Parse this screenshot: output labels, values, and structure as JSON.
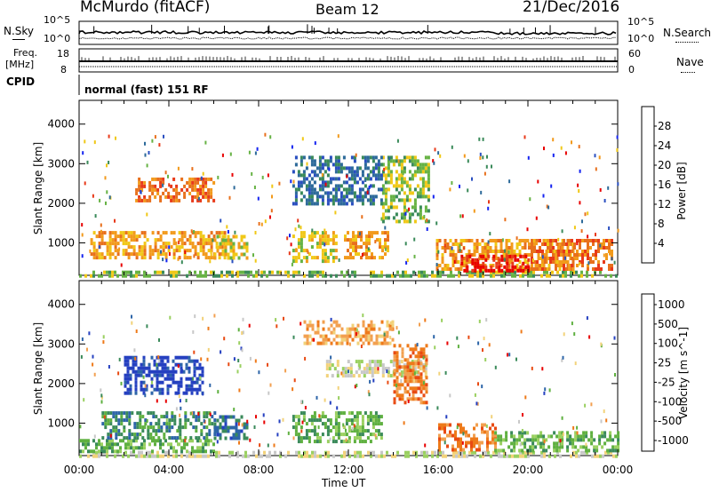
{
  "header": {
    "station": "McMurdo (fitACF)",
    "beam": "Beam 12",
    "date": "21/Dec/2016"
  },
  "noise_panel": {
    "left_label": "N.Sky",
    "right_label": "N.Search",
    "tick_top": "10^5",
    "tick_bottom": "10^0"
  },
  "freq_panel": {
    "left_label_top": "Freq.",
    "left_label_unit": "[MHz]",
    "right_label": "Nave",
    "left_tick_top": "18",
    "left_tick_bottom": "8",
    "right_tick_top": "60",
    "right_tick_bottom": "0"
  },
  "cpid_panel": {
    "left_label": "CPID",
    "program_text": "normal (fast) 151 RF"
  },
  "chart_data": [
    {
      "type": "heatmap",
      "name": "power",
      "ylabel": "Slant Range [km]",
      "xlabel": "",
      "x_ticks": [
        "00:00",
        "04:00",
        "08:00",
        "12:00",
        "16:00",
        "20:00",
        "00:00"
      ],
      "xlim_hours": [
        0,
        24
      ],
      "ylim_km": [
        180,
        4600
      ],
      "y_ticks": [
        1000,
        2000,
        3000,
        4000
      ],
      "colorbar": {
        "label": "Power [dB]",
        "tick_labels": [
          "4",
          "8",
          "12",
          "16",
          "20",
          "24",
          "28"
        ],
        "colors": [
          "#1524f0",
          "#2a4fc0",
          "#2d6a9a",
          "#3a8a5a",
          "#66b244",
          "#f0c817",
          "#f29a1c",
          "#e8701c",
          "#e83a1a",
          "#e80000"
        ]
      },
      "patches": [
        {
          "t0": 0.0,
          "t1": 24.0,
          "r0": 180,
          "r1": 300,
          "level": 4
        },
        {
          "t0": 0.5,
          "t1": 6.5,
          "r0": 600,
          "r1": 1300,
          "level": 6
        },
        {
          "t0": 2.5,
          "t1": 6.0,
          "r0": 2100,
          "r1": 2650,
          "level": 7
        },
        {
          "t0": 6.0,
          "t1": 7.5,
          "r0": 600,
          "r1": 1200,
          "level": 5
        },
        {
          "t0": 9.5,
          "t1": 11.5,
          "r0": 500,
          "r1": 1300,
          "level": 5
        },
        {
          "t0": 11.8,
          "t1": 13.8,
          "r0": 600,
          "r1": 1300,
          "level": 6
        },
        {
          "t0": 13.5,
          "t1": 15.6,
          "r0": 1500,
          "r1": 3200,
          "level": 4
        },
        {
          "t0": 9.5,
          "t1": 13.5,
          "r0": 2000,
          "r1": 3200,
          "level": 2
        },
        {
          "t0": 15.9,
          "t1": 22.0,
          "r0": 300,
          "r1": 1100,
          "level": 6
        },
        {
          "t0": 17.0,
          "t1": 20.0,
          "r0": 300,
          "r1": 700,
          "level": 9
        },
        {
          "t0": 20.0,
          "t1": 23.8,
          "r0": 300,
          "r1": 1100,
          "level": 7
        }
      ]
    },
    {
      "type": "heatmap",
      "name": "velocity",
      "ylabel": "Slant Range [km]",
      "xlabel": "Time UT",
      "x_ticks": [
        "00:00",
        "04:00",
        "08:00",
        "12:00",
        "16:00",
        "20:00",
        "00:00"
      ],
      "xlim_hours": [
        0,
        24
      ],
      "ylim_km": [
        180,
        4600
      ],
      "y_ticks": [
        1000,
        2000,
        3000,
        4000
      ],
      "colorbar": {
        "label": "Velocity [m s^-1]",
        "tick_labels": [
          "1000",
          "500",
          "100",
          "25",
          "-25",
          "-100",
          "-500",
          "-1000"
        ],
        "colors": [
          "#2540c0",
          "#2d65a8",
          "#3a8a5a",
          "#5fb040",
          "#9ad060",
          "#c8c8c8",
          "#f2d27a",
          "#f2a050",
          "#ee7a1a",
          "#e84a12",
          "#e80000"
        ]
      },
      "patches": [
        {
          "t0": 0.0,
          "t1": 24.0,
          "r0": 180,
          "r1": 300,
          "level": 5
        },
        {
          "t0": 0.0,
          "t1": 6.0,
          "r0": 300,
          "r1": 600,
          "level": 3
        },
        {
          "t0": 2.0,
          "t1": 5.5,
          "r0": 1800,
          "r1": 2700,
          "level": 0
        },
        {
          "t0": 1.0,
          "t1": 6.0,
          "r0": 600,
          "r1": 1300,
          "level": 2
        },
        {
          "t0": 6.0,
          "t1": 7.5,
          "r0": 600,
          "r1": 1200,
          "level": 1
        },
        {
          "t0": 9.5,
          "t1": 13.5,
          "r0": 500,
          "r1": 1300,
          "level": 3
        },
        {
          "t0": 11.0,
          "t1": 15.5,
          "r0": 2200,
          "r1": 2600,
          "level": 5
        },
        {
          "t0": 14.0,
          "t1": 15.5,
          "r0": 1500,
          "r1": 3000,
          "level": 8
        },
        {
          "t0": 10.0,
          "t1": 14.0,
          "r0": 3000,
          "r1": 3600,
          "level": 7
        },
        {
          "t0": 16.0,
          "t1": 18.5,
          "r0": 300,
          "r1": 1000,
          "level": 8
        },
        {
          "t0": 18.5,
          "t1": 24.0,
          "r0": 300,
          "r1": 800,
          "level": 3
        }
      ]
    }
  ]
}
